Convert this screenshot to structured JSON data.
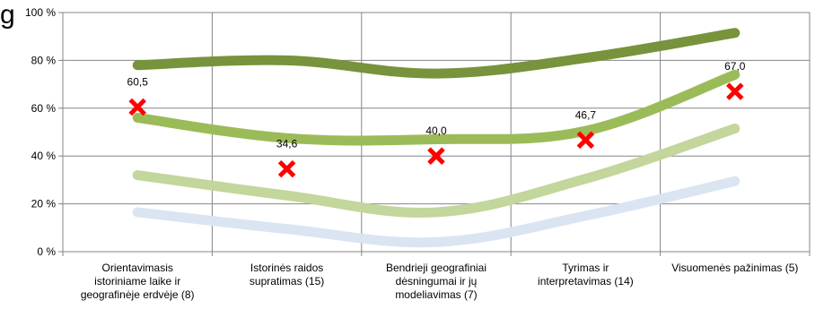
{
  "chart_data": {
    "type": "line",
    "title_fragment": "g",
    "categories": [
      "Orientavimasis istoriniame laike ir geografinėje erdvėje (8)",
      "Istorinės raidos supratimas (15)",
      "Bendrieji geografiniai dėsningumai ir jų modeliavimas (7)",
      "Tyrimas ir interpretavimas (14)",
      "Visuomenės pažinimas (5)"
    ],
    "category_lines": [
      [
        "Orientavimasis",
        "istoriniame laike ir",
        "geografinėje erdvėje (8)"
      ],
      [
        "Istorinės raidos",
        "supratimas (15)"
      ],
      [
        "Bendrieji geografiniai",
        "dėsningumai ir jų",
        "modeliavimas (7)"
      ],
      [
        "Tyrimas ir",
        "interpretavimas (14)"
      ],
      [
        "Visuomenės pažinimas (5)"
      ]
    ],
    "ylim": [
      0,
      100
    ],
    "yticks": [
      0,
      20,
      40,
      60,
      80,
      100
    ],
    "ytick_labels": [
      "0 %",
      "20 %",
      "40 %",
      "60 %",
      "80 %",
      "100 %"
    ],
    "grid": true,
    "series": [
      {
        "values": [
          78,
          80,
          74.5,
          81,
          91.5
        ],
        "color": "#77933c",
        "style": "line"
      },
      {
        "values": [
          56,
          47.5,
          47,
          50.5,
          74
        ],
        "color": "#9bbb59",
        "style": "line"
      },
      {
        "values": [
          32,
          23.5,
          16.5,
          30.5,
          51.5
        ],
        "color": "#c3d69b",
        "style": "line"
      },
      {
        "values": [
          16.5,
          9.5,
          4,
          15,
          29.5
        ],
        "color": "#dbe5f1",
        "style": "line"
      },
      {
        "values": [
          60.5,
          34.6,
          40.0,
          46.7,
          67.0
        ],
        "labels": [
          "60,5",
          "34,6",
          "40,0",
          "46,7",
          "67,0"
        ],
        "color": "#ff0000",
        "style": "marker-x"
      }
    ]
  }
}
